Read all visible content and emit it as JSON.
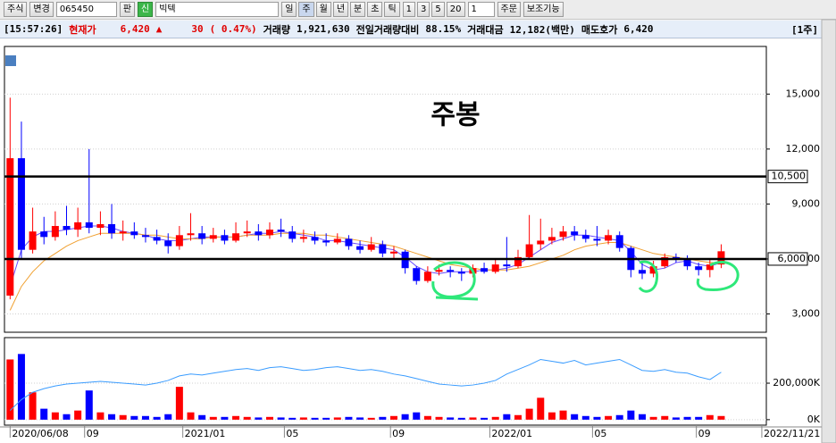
{
  "toolbar": {
    "market": "주식",
    "change": "변경",
    "code": "065450",
    "board": "판",
    "badge": "신",
    "stock_name": "빅텍",
    "periods": [
      "일",
      "주",
      "월",
      "년",
      "분",
      "초",
      "틱"
    ],
    "intervals": [
      "1",
      "3",
      "5",
      "20"
    ],
    "count": "1",
    "order": "주문",
    "indicators": "보조기능"
  },
  "infobar": {
    "time": "[15:57:26]",
    "price_label": "현재가",
    "price": "6,420",
    "arrow": "▲",
    "change": "30",
    "change_pct": "( 0.47%)",
    "volume_label": "거래량",
    "volume": "1,921,630",
    "prev_ratio_label": "전일거래량대비",
    "prev_ratio": "88.15%",
    "amount_label": "거래대금",
    "amount": "12,182(백만)",
    "ask_label": "매도호가",
    "ask": "6,420",
    "unit": "[1주]"
  },
  "chart_data": [
    {
      "type": "candlestick",
      "annotation": "주봉",
      "up_color": "#ff0000",
      "down_color": "#0000ff",
      "open": [
        4000,
        11500,
        6500,
        7500,
        7200,
        7800,
        7600,
        8000,
        7700,
        7900,
        7400,
        7500,
        7300,
        7200,
        7000,
        6700,
        7300,
        7400,
        7100,
        7300,
        7000,
        7400,
        7500,
        7300,
        7600,
        7500,
        7100,
        7200,
        7000,
        6900,
        7100,
        6700,
        6500,
        6800,
        6300,
        6400,
        5500,
        4800,
        5300,
        5400,
        5300,
        5200,
        5500,
        5300,
        5700,
        5600,
        6100,
        6800,
        7000,
        7200,
        7500,
        7300,
        7100,
        7000,
        7300,
        6600,
        5400,
        5200,
        5600,
        6100,
        6000,
        5600,
        5400,
        5700
      ],
      "high": [
        14800,
        13500,
        8800,
        8300,
        8600,
        8900,
        8800,
        12000,
        8600,
        9000,
        8100,
        8000,
        7700,
        7600,
        7400,
        7800,
        8500,
        7800,
        7700,
        7600,
        8000,
        8100,
        7900,
        8000,
        8200,
        7800,
        7600,
        7500,
        7400,
        7400,
        7300,
        7000,
        7200,
        7000,
        6700,
        6500,
        5600,
        5600,
        5700,
        5600,
        5500,
        5700,
        5800,
        6000,
        7200,
        6500,
        8400,
        8200,
        7700,
        7800,
        7800,
        7600,
        7800,
        7600,
        7500,
        6700,
        5800,
        5900,
        6300,
        6300,
        6200,
        5800,
        6000,
        6800
      ],
      "low": [
        3800,
        6000,
        6300,
        6800,
        7000,
        7300,
        7200,
        7400,
        7300,
        7100,
        7000,
        7100,
        6900,
        6800,
        6300,
        6500,
        7000,
        6800,
        6900,
        6800,
        6900,
        7200,
        7000,
        7100,
        7200,
        6900,
        6900,
        6800,
        6700,
        6800,
        6500,
        6300,
        6400,
        6100,
        6000,
        5200,
        4600,
        4700,
        5100,
        5000,
        4800,
        5000,
        5200,
        5200,
        5300,
        5500,
        6000,
        6500,
        6800,
        7000,
        7000,
        6900,
        6700,
        6800,
        6400,
        5000,
        4900,
        5000,
        5500,
        5800,
        5400,
        5100,
        5000,
        5500
      ],
      "close": [
        11500,
        6500,
        7500,
        7200,
        7800,
        7600,
        8000,
        7700,
        7900,
        7400,
        7500,
        7300,
        7200,
        7000,
        6700,
        7300,
        7400,
        7100,
        7300,
        7000,
        7400,
        7500,
        7300,
        7600,
        7500,
        7100,
        7200,
        7000,
        6900,
        7100,
        6700,
        6500,
        6800,
        6300,
        6400,
        5500,
        4800,
        5300,
        5400,
        5300,
        5200,
        5500,
        5300,
        5700,
        5600,
        6100,
        6800,
        7000,
        7200,
        7500,
        7300,
        7100,
        7000,
        7300,
        6600,
        5400,
        5200,
        5600,
        6100,
        6000,
        5600,
        5400,
        5700,
        6420
      ],
      "ma_lines": [
        {
          "color": "#6a4cff",
          "values": [
            4500,
            6500,
            7200,
            7500,
            7500,
            7600,
            7700,
            7800,
            7800,
            7700,
            7500,
            7400,
            7300,
            7100,
            7000,
            7000,
            7100,
            7200,
            7200,
            7200,
            7200,
            7300,
            7400,
            7400,
            7500,
            7400,
            7300,
            7200,
            7000,
            7000,
            6900,
            6800,
            6700,
            6600,
            6500,
            6100,
            5600,
            5300,
            5200,
            5300,
            5300,
            5300,
            5400,
            5400,
            5500,
            5700,
            6100,
            6500,
            6900,
            7100,
            7300,
            7300,
            7200,
            7100,
            7000,
            6400,
            5700,
            5400,
            5500,
            5800,
            5900,
            5700,
            5600,
            5800
          ]
        },
        {
          "color": "#f0a030",
          "values": [
            3200,
            4500,
            5300,
            5900,
            6300,
            6700,
            7000,
            7200,
            7400,
            7400,
            7400,
            7400,
            7300,
            7300,
            7200,
            7100,
            7100,
            7100,
            7200,
            7200,
            7200,
            7300,
            7300,
            7300,
            7400,
            7400,
            7400,
            7300,
            7300,
            7200,
            7100,
            7000,
            6900,
            6800,
            6700,
            6500,
            6300,
            6100,
            5900,
            5700,
            5600,
            5500,
            5400,
            5400,
            5400,
            5500,
            5600,
            5800,
            6000,
            6200,
            6500,
            6700,
            6800,
            6900,
            6900,
            6700,
            6500,
            6300,
            6200,
            6100,
            6000,
            5900,
            5800,
            5800
          ]
        }
      ],
      "levels": [
        {
          "value": 10500,
          "label": "10,500"
        },
        {
          "value": 6000,
          "label": "6,000"
        }
      ],
      "ylim": [
        2000,
        17600
      ],
      "yticks": [
        {
          "value": 3000,
          "label": "3,000"
        },
        {
          "value": 6000,
          "label": "6,000"
        },
        {
          "value": 9000,
          "label": "9,000"
        },
        {
          "value": 12000,
          "label": "12,000"
        },
        {
          "value": 15000,
          "label": "15,000"
        }
      ],
      "xlim": [
        -0.5,
        67
      ],
      "xticks": [
        {
          "value": 0,
          "label": "2020/06/08"
        },
        {
          "value": 6.6,
          "label": "09"
        },
        {
          "value": 15.3,
          "label": "2021/01"
        },
        {
          "value": 24.3,
          "label": "05"
        },
        {
          "value": 33.7,
          "label": "09"
        },
        {
          "value": 42.5,
          "label": "2022/01"
        },
        {
          "value": 51.6,
          "label": "05"
        },
        {
          "value": 60.8,
          "label": "09"
        },
        {
          "value": 66.6,
          "label": "2022/11/21"
        }
      ]
    },
    {
      "type": "bar",
      "values": [
        330000,
        360000,
        150000,
        60000,
        40000,
        30000,
        50000,
        160000,
        40000,
        30000,
        25000,
        20000,
        20000,
        15000,
        30000,
        180000,
        40000,
        25000,
        15000,
        15000,
        20000,
        15000,
        12000,
        15000,
        12000,
        10000,
        12000,
        10000,
        10000,
        12000,
        15000,
        12000,
        10000,
        15000,
        20000,
        30000,
        40000,
        20000,
        15000,
        12000,
        10000,
        12000,
        10000,
        15000,
        30000,
        25000,
        60000,
        120000,
        40000,
        50000,
        30000,
        20000,
        15000,
        20000,
        25000,
        50000,
        30000,
        15000,
        20000,
        12000,
        15000,
        15000,
        25000,
        20000
      ],
      "line": {
        "color": "#3a9cff",
        "values": [
          50000,
          110000,
          150000,
          170000,
          185000,
          195000,
          200000,
          205000,
          210000,
          205000,
          200000,
          195000,
          190000,
          200000,
          215000,
          240000,
          250000,
          245000,
          255000,
          265000,
          275000,
          280000,
          270000,
          285000,
          290000,
          280000,
          270000,
          275000,
          285000,
          290000,
          280000,
          270000,
          275000,
          265000,
          250000,
          240000,
          225000,
          210000,
          195000,
          190000,
          185000,
          190000,
          200000,
          215000,
          250000,
          275000,
          300000,
          330000,
          320000,
          310000,
          325000,
          300000,
          310000,
          320000,
          330000,
          300000,
          270000,
          265000,
          275000,
          260000,
          255000,
          235000,
          220000,
          260000
        ]
      },
      "ylim": [
        -30000,
        440000
      ],
      "yticks": [
        {
          "value": 0,
          "label": "0K"
        },
        {
          "value": 200000,
          "label": "200,000K"
        }
      ]
    }
  ]
}
